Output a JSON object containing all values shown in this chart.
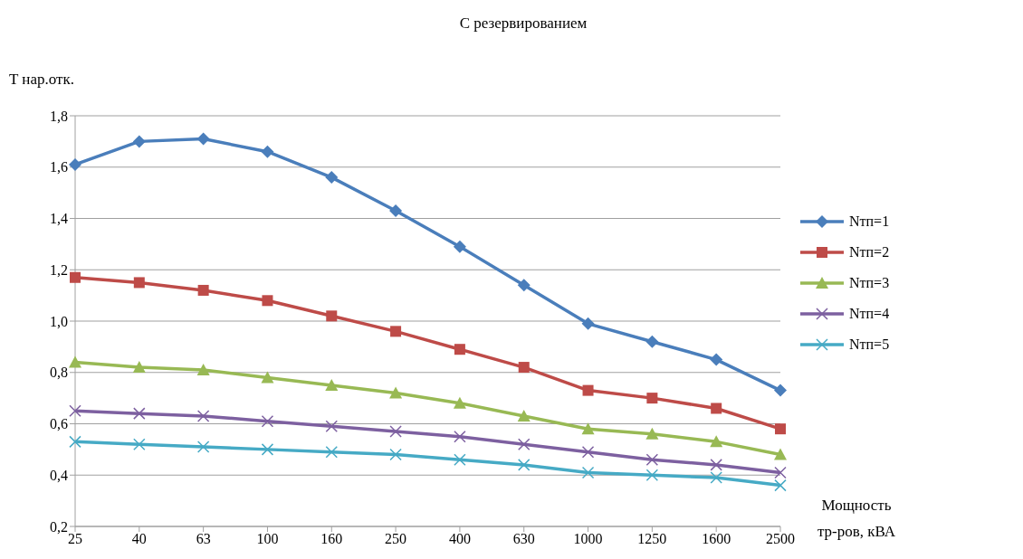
{
  "chart_data": {
    "type": "line",
    "title": "С резервированием",
    "ylabel": "T нар.отк.",
    "xlabel": "Мощность тр-ров, кВА",
    "categories": [
      "25",
      "40",
      "63",
      "100",
      "160",
      "250",
      "400",
      "630",
      "1000",
      "1250",
      "1600",
      "2500"
    ],
    "ylim": [
      0.2,
      1.8
    ],
    "yticks": [
      {
        "value": 0.2,
        "label": "0,2"
      },
      {
        "value": 0.4,
        "label": "0,4"
      },
      {
        "value": 0.6,
        "label": "0,6"
      },
      {
        "value": 0.8,
        "label": "0,8"
      },
      {
        "value": 1.0,
        "label": "1,0"
      },
      {
        "value": 1.2,
        "label": "1,2"
      },
      {
        "value": 1.4,
        "label": "1,4"
      },
      {
        "value": 1.6,
        "label": "1,6"
      },
      {
        "value": 1.8,
        "label": "1,8"
      }
    ],
    "grid": "y",
    "legend": "right",
    "line_style": "solid",
    "series": [
      {
        "name": "Nтп=1",
        "color": "#4a7ebb",
        "marker": "diamond",
        "values": [
          1.61,
          1.7,
          1.71,
          1.66,
          1.56,
          1.43,
          1.29,
          1.14,
          0.99,
          0.92,
          0.85,
          0.73
        ]
      },
      {
        "name": "Nтп=2",
        "color": "#be4b48",
        "marker": "square",
        "values": [
          1.17,
          1.15,
          1.12,
          1.08,
          1.02,
          0.96,
          0.89,
          0.82,
          0.73,
          0.7,
          0.66,
          0.58
        ]
      },
      {
        "name": "Nтп=3",
        "color": "#98b954",
        "marker": "triangle",
        "values": [
          0.84,
          0.82,
          0.81,
          0.78,
          0.75,
          0.72,
          0.68,
          0.63,
          0.58,
          0.56,
          0.53,
          0.48
        ]
      },
      {
        "name": "Nтп=4",
        "color": "#7d60a0",
        "marker": "cross",
        "values": [
          0.65,
          0.64,
          0.63,
          0.61,
          0.59,
          0.57,
          0.55,
          0.52,
          0.49,
          0.46,
          0.44,
          0.41
        ]
      },
      {
        "name": "Nтп=5",
        "color": "#46aac5",
        "marker": "cross",
        "values": [
          0.53,
          0.52,
          0.51,
          0.5,
          0.49,
          0.48,
          0.46,
          0.44,
          0.41,
          0.4,
          0.39,
          0.36
        ]
      }
    ]
  }
}
